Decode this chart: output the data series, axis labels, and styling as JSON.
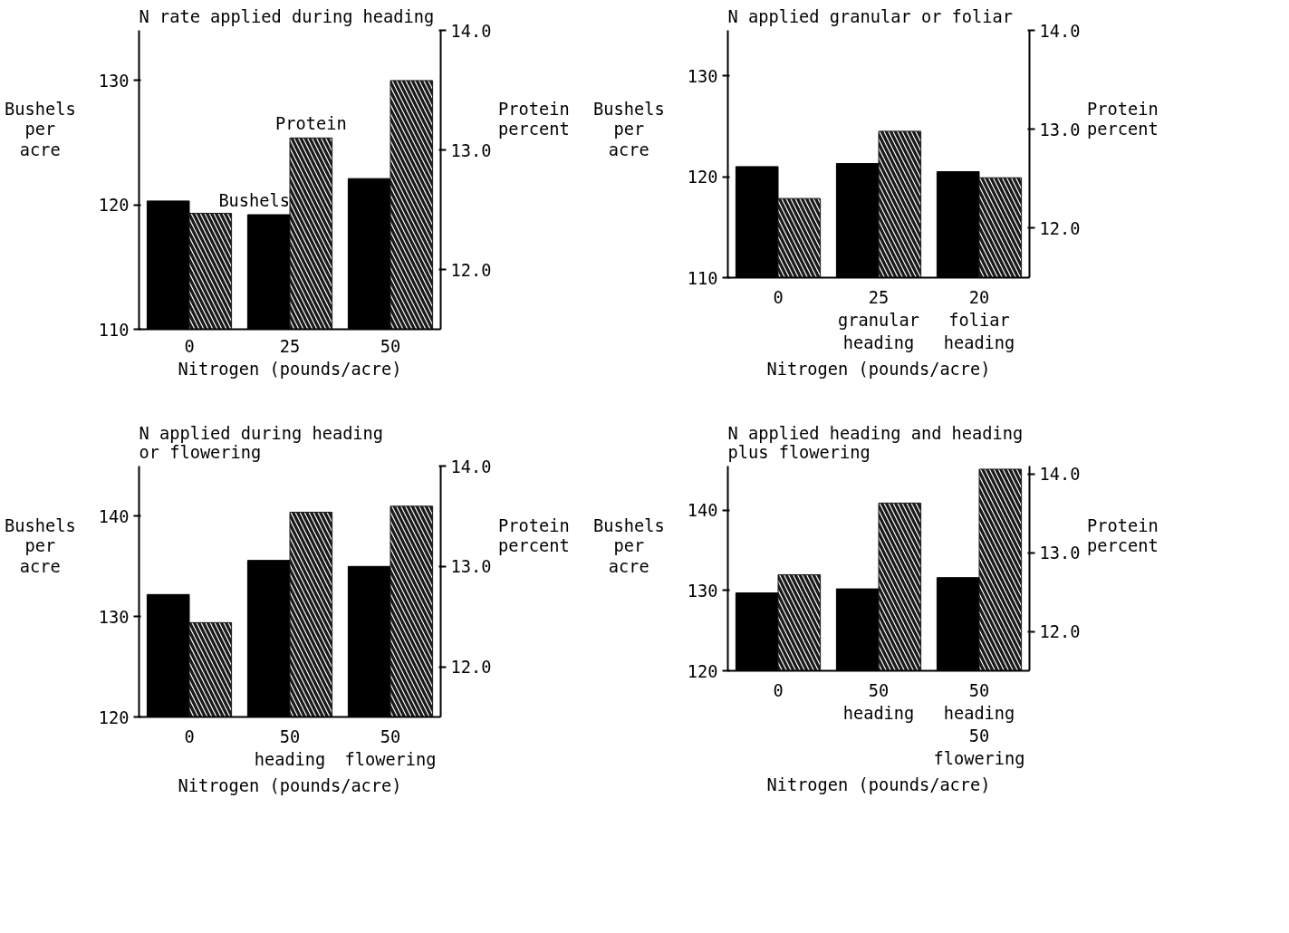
{
  "chart_data": [
    {
      "type": "bar",
      "title": "N rate applied during heading",
      "xlabel": "Nitrogen (pounds/acre)",
      "ylabel": "Bushels\nper\nacre",
      "y2label": "Protein\npercent",
      "categories": [
        "0",
        "25",
        "50"
      ],
      "series": [
        {
          "name": "Bushels",
          "color": "#000000",
          "values": [
            120.3,
            119.2,
            122.1
          ]
        },
        {
          "name": "Protein",
          "color": "#1a1a1a",
          "axis": "y2",
          "values": [
            12.47,
            13.1,
            13.58
          ]
        }
      ],
      "ylim": [
        110,
        134
      ],
      "yticks": [
        110,
        120,
        130
      ],
      "y2lim": [
        11.5,
        14.0
      ],
      "y2ticks": [
        {
          "value": 12,
          "label": "12.0"
        },
        {
          "value": 13,
          "label": "13.0"
        },
        {
          "value": 14,
          "label": "14.0"
        }
      ],
      "grid": false,
      "legend": false
    },
    {
      "type": "bar",
      "title": "N applied granular or foliar",
      "xlabel": "Nitrogen (pounds/acre)",
      "ylabel": "Bushels\nper\nacre",
      "y2label": "Protein\npercent",
      "categories": [
        "0",
        "25\ngranular\nheading",
        "20\nfoliar\nheading"
      ],
      "series": [
        {
          "color": "#000000",
          "values": [
            121.0,
            121.3,
            120.5
          ]
        },
        {
          "color": "#1a1a1a",
          "axis": "y2",
          "values": [
            12.3,
            12.98,
            12.51
          ]
        }
      ],
      "ylim": [
        110,
        134.5
      ],
      "yticks": [
        110,
        120,
        130
      ],
      "y2lim": [
        11.5,
        14.0
      ],
      "y2ticks": [
        {
          "value": 12,
          "label": "12.0"
        },
        {
          "value": 13,
          "label": "13.0"
        },
        {
          "value": 14,
          "label": "14.0"
        }
      ],
      "grid": false,
      "legend": false
    },
    {
      "type": "bar",
      "title": "N applied during heading\nor flowering",
      "xlabel": "Nitrogen (pounds/acre)",
      "ylabel": "Bushels\nper\nacre",
      "y2label": "Protein\npercent",
      "categories": [
        "0",
        "50\nheading",
        "50\nflowering"
      ],
      "series": [
        {
          "color": "#000000",
          "values": [
            132.2,
            135.6,
            135.0
          ]
        },
        {
          "color": "#1a1a1a",
          "axis": "y2",
          "values": [
            12.44,
            13.54,
            13.6
          ]
        }
      ],
      "ylim": [
        120,
        145
      ],
      "yticks": [
        120,
        130,
        140
      ],
      "y2lim": [
        11.5,
        14.0
      ],
      "y2ticks": [
        {
          "value": 12,
          "label": "12.0"
        },
        {
          "value": 13,
          "label": "13.0"
        },
        {
          "value": 14,
          "label": "14.0"
        }
      ],
      "grid": false,
      "legend": false
    },
    {
      "type": "bar",
      "title": "N applied heading and heading\nplus flowering",
      "xlabel": "Nitrogen (pounds/acre)",
      "ylabel": "Bushels\nper\nacre",
      "y2label": "Protein\npercent",
      "categories": [
        "0",
        "50\nheading",
        "50\nheading\n50\nflowering"
      ],
      "series": [
        {
          "color": "#000000",
          "values": [
            129.7,
            130.2,
            131.6
          ]
        },
        {
          "color": "#1a1a1a",
          "axis": "y2",
          "values": [
            12.72,
            13.63,
            14.06
          ]
        }
      ],
      "ylim": [
        120,
        145.5
      ],
      "yticks": [
        120,
        130,
        140
      ],
      "y2lim": [
        11.5,
        14.1
      ],
      "y2ticks": [
        {
          "value": 12,
          "label": "12.0"
        },
        {
          "value": 13,
          "label": "13.0"
        },
        {
          "value": 14,
          "label": "14.0"
        }
      ],
      "grid": false,
      "legend": false
    }
  ]
}
